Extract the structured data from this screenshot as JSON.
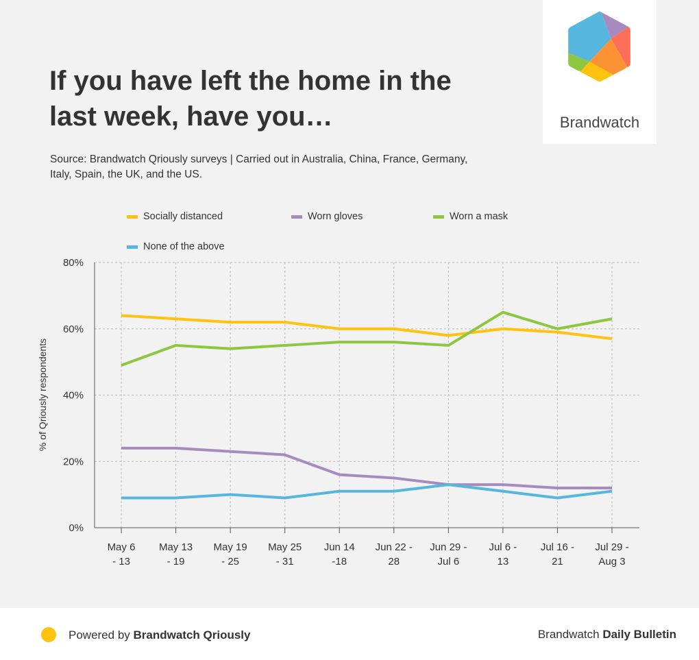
{
  "title": "If you have left the home in the last week, have you…",
  "source": "Source: Brandwatch Qriously surveys | Carried out in Australia, China, France, Germany, Italy, Spain, the UK, and the US.",
  "logo": {
    "text": "Brandwatch",
    "colors": [
      "#56b6de",
      "#a78bbf",
      "#ff6e59",
      "#fb9233",
      "#ffc20e",
      "#8dc63f"
    ]
  },
  "footer": {
    "powered_prefix": "Powered by ",
    "powered_brand": "Brandwatch Qriously",
    "right_prefix": "Brandwatch ",
    "right_bold": "Daily Bulletin",
    "dot_color": "#ffc20e"
  },
  "chart_data": {
    "type": "line",
    "title": "",
    "xlabel": "",
    "ylabel": "% of Qriously respondents",
    "ylim": [
      0,
      80
    ],
    "yticks": [
      "0%",
      "20%",
      "40%",
      "60%",
      "80%"
    ],
    "grid": true,
    "legend_placement": "top",
    "categories": [
      [
        "May 6",
        "- 13"
      ],
      [
        "May 13",
        "- 19"
      ],
      [
        "May 19",
        "- 25"
      ],
      [
        "May 25",
        "- 31"
      ],
      [
        "Jun 14",
        "-18"
      ],
      [
        "Jun 22 -",
        "28"
      ],
      [
        "Jun 29 -",
        "Jul 6"
      ],
      [
        "Jul 6 -",
        "13"
      ],
      [
        "Jul 16 -",
        "21"
      ],
      [
        "Jul 29 -",
        "Aug 3"
      ]
    ],
    "series": [
      {
        "name": "Socially distanced",
        "color": "#ffc20e",
        "values": [
          64,
          63,
          62,
          62,
          60,
          60,
          58,
          60,
          59,
          57
        ]
      },
      {
        "name": "Worn gloves",
        "color": "#a78bbf",
        "values": [
          24,
          24,
          23,
          22,
          16,
          15,
          13,
          13,
          12,
          12
        ]
      },
      {
        "name": "Worn a mask",
        "color": "#8dc63f",
        "values": [
          49,
          55,
          54,
          55,
          56,
          56,
          55,
          65,
          60,
          63
        ]
      },
      {
        "name": "None of the above",
        "color": "#56b6de",
        "values": [
          9,
          9,
          10,
          9,
          11,
          11,
          13,
          11,
          9,
          11
        ]
      }
    ]
  }
}
